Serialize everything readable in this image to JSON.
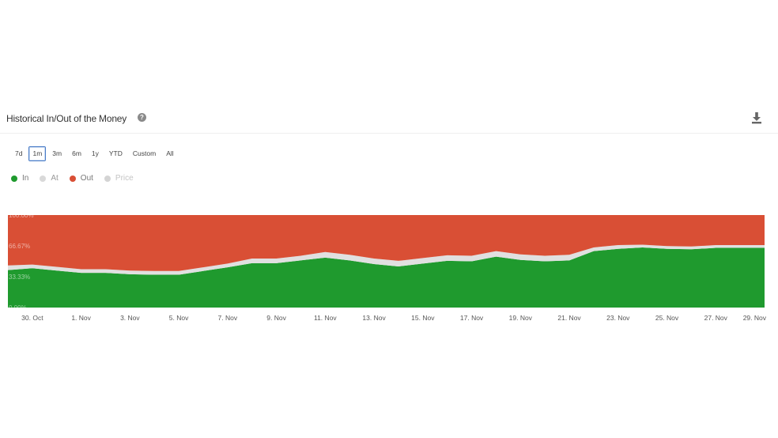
{
  "header": {
    "title": "Historical In/Out of the Money",
    "help_icon": "question-circle-icon",
    "download_icon": "download-icon"
  },
  "ranges": {
    "items": [
      "7d",
      "1m",
      "3m",
      "6m",
      "1y",
      "YTD",
      "Custom",
      "All"
    ],
    "active": "1m"
  },
  "legend": [
    {
      "name": "In",
      "color": "#1f9a2e",
      "text_color": "#777777"
    },
    {
      "name": "At",
      "color": "#d9d9d9",
      "text_color": "#999999"
    },
    {
      "name": "Out",
      "color": "#d94f35",
      "text_color": "#777777"
    },
    {
      "name": "Price",
      "color": "#d4d4d4",
      "text_color": "#c4c4c4"
    }
  ],
  "chart_data": {
    "type": "area",
    "stacked": true,
    "y_tick_labels": [
      "0.00%",
      "33.33%",
      "66.67%",
      "100.00%"
    ],
    "ylim": [
      0,
      100
    ],
    "x_tick_labels": [
      "30. Oct",
      "1. Nov",
      "3. Nov",
      "5. Nov",
      "7. Nov",
      "9. Nov",
      "11. Nov",
      "13. Nov",
      "15. Nov",
      "17. Nov",
      "19. Nov",
      "21. Nov",
      "23. Nov",
      "25. Nov",
      "27. Nov",
      "29. Nov"
    ],
    "colors": {
      "In": "#1f9a2e",
      "At": "#e0e0e0",
      "Out": "#d94f35"
    },
    "x": [
      "29. Oct",
      "30. Oct",
      "31. Oct",
      "1. Nov",
      "2. Nov",
      "3. Nov",
      "4. Nov",
      "5. Nov",
      "6. Nov",
      "7. Nov",
      "8. Nov",
      "9. Nov",
      "10. Nov",
      "11. Nov",
      "12. Nov",
      "13. Nov",
      "14. Nov",
      "15. Nov",
      "16. Nov",
      "17. Nov",
      "18. Nov",
      "19. Nov",
      "20. Nov",
      "21. Nov",
      "22. Nov",
      "23. Nov",
      "24. Nov",
      "25. Nov",
      "26. Nov",
      "27. Nov",
      "28. Nov",
      "29. Nov"
    ],
    "series": [
      {
        "name": "In",
        "values": [
          40.5,
          42.5,
          40,
          37.5,
          37.5,
          36,
          35.5,
          35.5,
          39.5,
          43.5,
          48,
          48,
          51,
          54,
          51,
          47,
          44.5,
          47.5,
          50.5,
          50,
          55,
          51.5,
          50,
          51,
          61,
          63.5,
          65,
          63.5,
          63,
          64.5,
          64.5,
          64.5
        ]
      },
      {
        "name": "At",
        "values": [
          5,
          4,
          4,
          4,
          4,
          4,
          4,
          4,
          4,
          4,
          5,
          5,
          5,
          6,
          6,
          6,
          6,
          6,
          6,
          6,
          6,
          6,
          6,
          6,
          4,
          4,
          3,
          3,
          3,
          3,
          3,
          3
        ]
      },
      {
        "name": "Out",
        "values": [
          54.5,
          53.5,
          56,
          58.5,
          58.5,
          60,
          60.5,
          60.5,
          56.5,
          52.5,
          47,
          47,
          44,
          40,
          43,
          47,
          49.5,
          46.5,
          43.5,
          44,
          39,
          42.5,
          44,
          43,
          35,
          32.5,
          32,
          33.5,
          34,
          32.5,
          32.5,
          32.5
        ]
      }
    ]
  }
}
